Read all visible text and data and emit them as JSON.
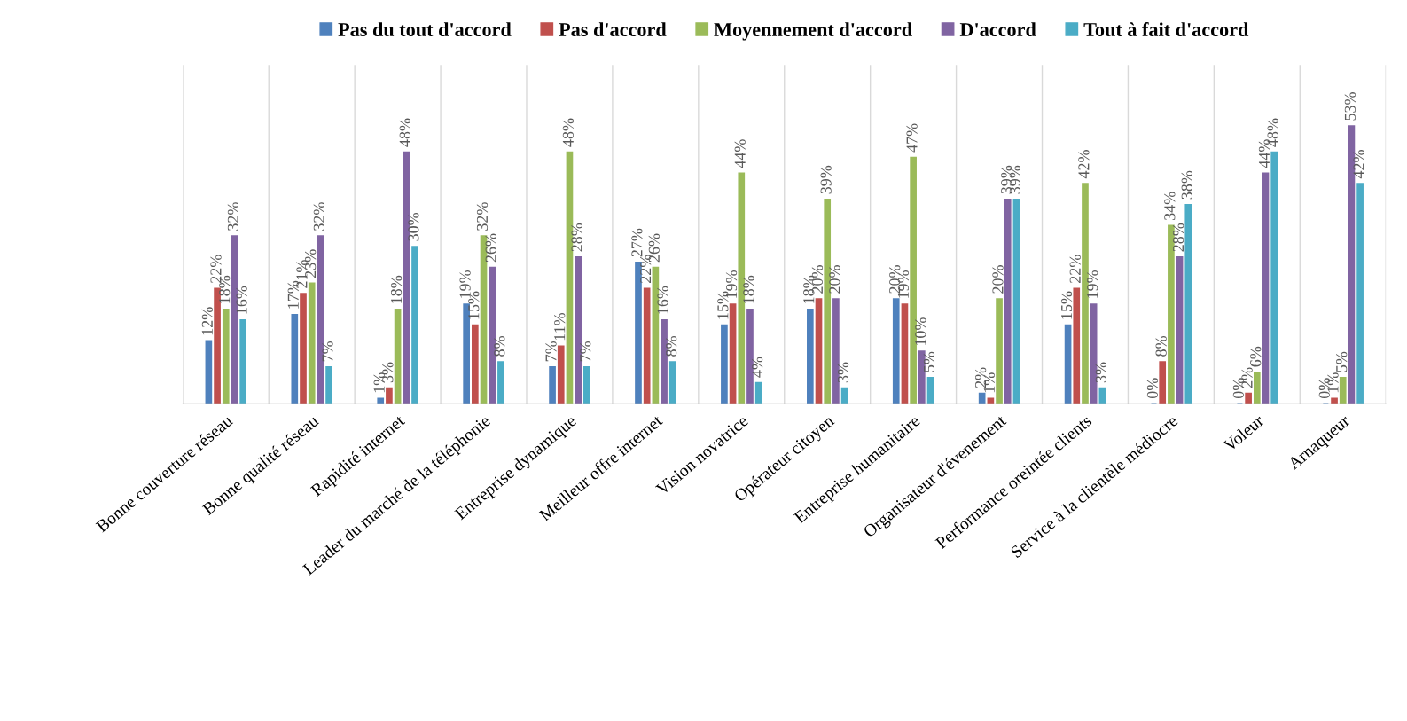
{
  "chart_data": {
    "type": "bar",
    "categories": [
      "Bonne couverture réseau",
      "Bonne qualité réseau",
      "Rapidité internet",
      "Leader du marché de la téléphonie",
      "Entreprise dynamique",
      "Meilleur offre internet",
      "Vision novatrice",
      "Opérateur citoyen",
      "Entreprise humanitaire",
      "Organisateur d'évenement",
      "Performance oreintée clients",
      "Service à la clientèle médiocre",
      "Voleur",
      "Arnaqueur"
    ],
    "series": [
      {
        "name": "Pas du tout d'accord",
        "color": "#4f81bd",
        "values": [
          12,
          17,
          1,
          19,
          7,
          27,
          15,
          18,
          20,
          2,
          15,
          0,
          0,
          0
        ],
        "value_labels": [
          "12%",
          "17%",
          "1%",
          "19%",
          "7%",
          "27%",
          "15%",
          "18%",
          "20%",
          "2%",
          "15%",
          "0%",
          "0%",
          "0%"
        ]
      },
      {
        "name": "Pas d'accord",
        "color": "#c0504d",
        "values": [
          22,
          21,
          3,
          15,
          11,
          22,
          19,
          20,
          19,
          1,
          22,
          8,
          2,
          1
        ],
        "value_labels": [
          "22%",
          "21%",
          "3%",
          "15%",
          "11%",
          "22%",
          "19%",
          "20%",
          "19%",
          "1%",
          "22%",
          "8%",
          "2%",
          "1%"
        ]
      },
      {
        "name": "Moyennement d'accord",
        "color": "#9bbb59",
        "values": [
          18,
          23,
          18,
          32,
          48,
          26,
          44,
          39,
          47,
          20,
          42,
          34,
          6,
          5
        ],
        "value_labels": [
          "18%",
          "23%",
          "18%",
          "32%",
          "48%",
          "26%",
          "44%",
          "39%",
          "47%",
          "20%",
          "42%",
          "34%",
          "6%",
          "5%"
        ]
      },
      {
        "name": "D'accord",
        "color": "#8064a2",
        "values": [
          32,
          32,
          48,
          26,
          28,
          16,
          18,
          20,
          10,
          39,
          19,
          28,
          44,
          53
        ],
        "value_labels": [
          "32%",
          "32%",
          "48%",
          "26%",
          "28%",
          "16%",
          "18%",
          "20%",
          "10%",
          "39%",
          "19%",
          "28%",
          "44%",
          "53%"
        ]
      },
      {
        "name": "Tout à fait d'accord",
        "color": "#4bacc6",
        "values": [
          16,
          7,
          30,
          8,
          7,
          8,
          4,
          3,
          5,
          39,
          3,
          38,
          48,
          42
        ],
        "value_labels": [
          "16%",
          "7%",
          "30%",
          "8%",
          "7%",
          "8%",
          "4%",
          "3%",
          "5%",
          "39%",
          "3%",
          "38%",
          "48%",
          "42%"
        ]
      }
    ],
    "grid": "x",
    "legend": "top"
  }
}
